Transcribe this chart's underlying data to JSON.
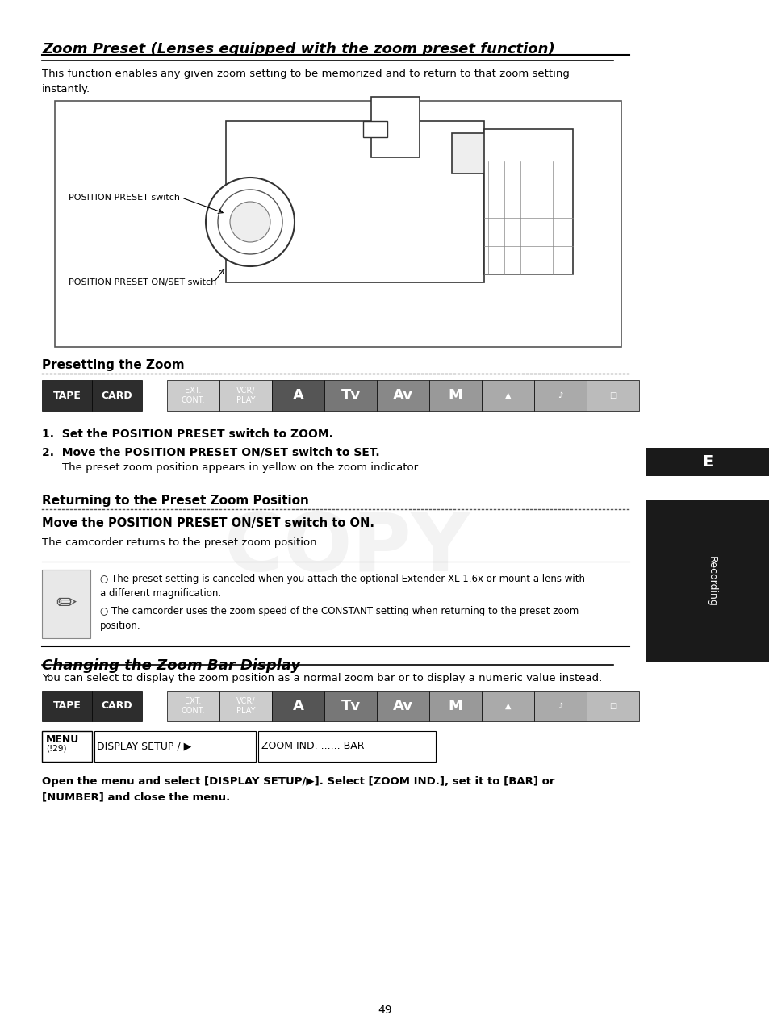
{
  "page_number": "49",
  "bg_color": "#ffffff",
  "section1_title": "Zoom Preset (Lenses equipped with the zoom preset function)",
  "section1_desc": "This function enables any given zoom setting to be memorized and to return to that zoom setting\ninstantly.",
  "presetting_title": "Presetting the Zoom",
  "step1": "1.  Set the POSITION PRESET switch to ZOOM.",
  "step2": "2.  Move the POSITION PRESET ON/SET switch to SET.",
  "step2_sub": "The preset zoom position appears in yellow on the zoom indicator.",
  "returning_title": "Returning to the Preset Zoom Position",
  "returning_bold": "Move the POSITION PRESET ON/SET switch to ON.",
  "returning_sub": "The camcorder returns to the preset zoom position.",
  "note1": "The preset setting is canceled when you attach the optional Extender XL 1.6x or mount a lens with\na different magnification.",
  "note2": "The camcorder uses the zoom speed of the CONSTANT setting when returning to the preset zoom\nposition.",
  "section2_title": "Changing the Zoom Bar Display",
  "section2_desc": "You can select to display the zoom position as a normal zoom bar or to display a numeric value instead.",
  "menu_label": "MENU\n(!29)",
  "menu_path1": "DISPLAY SETUP / ▶",
  "menu_path2": "ZOOM IND. ...... BAR",
  "final_text": "Open the menu and select [DISPLAY SETUP/▶]. Select [ZOOM IND.], set it to [BAR] or\n[NUMBER] and close the menu.",
  "tape_color": "#2d2d2d",
  "card_color": "#2d2d2d",
  "mode_bar_colors": [
    "#5a5a5a",
    "#5a5a5a",
    "#3a3a3a",
    "#6a6a6a",
    "#6a6a6a",
    "#888888",
    "#888888",
    "#aaaaaa",
    "#aaaaaa"
  ],
  "sidebar_color": "#1a1a1a",
  "recording_text": "Recording",
  "tab_border_color": "#000000"
}
